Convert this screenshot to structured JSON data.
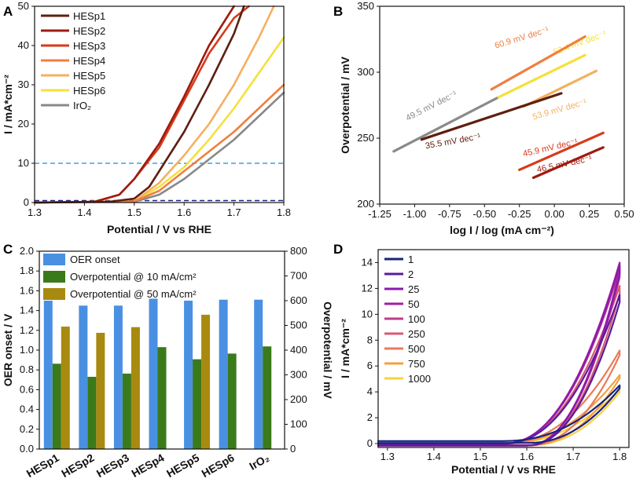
{
  "chart_data": [
    {
      "panel": "A",
      "type": "line",
      "xlabel": "Potential / V vs RHE",
      "ylabel": "I / mA*cm⁻²",
      "xlim": [
        1.3,
        1.8
      ],
      "ylim": [
        0,
        50
      ],
      "xticks": [
        "1.3",
        "1.4",
        "1.5",
        "1.6",
        "1.7",
        "1.8"
      ],
      "yticks": [
        "0",
        "10",
        "20",
        "30",
        "40",
        "50"
      ],
      "hlines": [
        {
          "y": 10,
          "color": "#3aa0e0"
        },
        {
          "y": 0.5,
          "color": "#1a237e"
        }
      ],
      "series": [
        {
          "name": "HESp1",
          "color": "#5e1f10",
          "x": [
            1.3,
            1.45,
            1.5,
            1.53,
            1.55,
            1.6,
            1.65,
            1.7,
            1.72
          ],
          "y": [
            0,
            0.2,
            1,
            4,
            8,
            18,
            30,
            43,
            50
          ]
        },
        {
          "name": "HESp2",
          "color": "#9e1b10",
          "x": [
            1.3,
            1.42,
            1.47,
            1.5,
            1.55,
            1.6,
            1.65,
            1.7
          ],
          "y": [
            0,
            0.2,
            2,
            6,
            15,
            27,
            40,
            50
          ]
        },
        {
          "name": "HESp3",
          "color": "#d83a1a",
          "x": [
            1.3,
            1.42,
            1.47,
            1.5,
            1.55,
            1.6,
            1.65,
            1.7,
            1.73
          ],
          "y": [
            0,
            0.2,
            2,
            6,
            14,
            26,
            38,
            47,
            50
          ]
        },
        {
          "name": "HESp4",
          "color": "#f07f3f",
          "x": [
            1.3,
            1.5,
            1.55,
            1.6,
            1.65,
            1.7,
            1.75,
            1.8
          ],
          "y": [
            0,
            0.3,
            3,
            8,
            13,
            18,
            24,
            30
          ]
        },
        {
          "name": "HESp5",
          "color": "#f4b060",
          "x": [
            1.3,
            1.5,
            1.55,
            1.6,
            1.65,
            1.7,
            1.75,
            1.78
          ],
          "y": [
            0,
            0.3,
            5,
            12,
            20,
            30,
            42,
            50
          ]
        },
        {
          "name": "HESp6",
          "color": "#f5e03c",
          "x": [
            1.3,
            1.5,
            1.55,
            1.6,
            1.65,
            1.7,
            1.75,
            1.8
          ],
          "y": [
            0,
            0.3,
            4,
            9,
            16,
            24,
            33,
            42
          ]
        },
        {
          "name": "IrO₂",
          "color": "#888888",
          "x": [
            1.3,
            1.5,
            1.55,
            1.6,
            1.65,
            1.7,
            1.75,
            1.8
          ],
          "y": [
            0,
            0.2,
            2,
            6,
            11,
            16,
            22,
            28
          ]
        }
      ]
    },
    {
      "panel": "B",
      "type": "line",
      "xlabel": "log I / log (mA cm⁻²)",
      "ylabel": "Overpotential / mV",
      "xlim": [
        -1.25,
        0.5
      ],
      "ylim": [
        200,
        350
      ],
      "xticks": [
        "-1.25",
        "-1.00",
        "-0.75",
        "-0.50",
        "-0.25",
        "0.00",
        "0.25",
        "0.50"
      ],
      "yticks": [
        "200",
        "250",
        "300",
        "350"
      ],
      "series": [
        {
          "name": "IrO₂",
          "color": "#8a8a8a",
          "x": [
            -1.15,
            -0.4
          ],
          "y": [
            240,
            281
          ],
          "label": "49.5 mV dec⁻¹"
        },
        {
          "name": "HESp6",
          "color": "#f5e03c",
          "x": [
            -0.4,
            0.22
          ],
          "y": [
            281,
            313
          ],
          "label": "52.4 mV dec⁻¹"
        },
        {
          "name": "HESp4",
          "color": "#f07f3f",
          "x": [
            -0.45,
            0.22
          ],
          "y": [
            287,
            327
          ],
          "label": "60.9 mV dec⁻¹"
        },
        {
          "name": "HESp5",
          "color": "#f4b060",
          "x": [
            -0.22,
            0.3
          ],
          "y": [
            274,
            301
          ],
          "label": "53.9 mV dec⁻¹"
        },
        {
          "name": "HESp1",
          "color": "#5e1f10",
          "x": [
            -0.95,
            0.05
          ],
          "y": [
            249,
            284
          ],
          "label": "35.5 mV dec⁻¹"
        },
        {
          "name": "HESp3",
          "color": "#d83a1a",
          "x": [
            -0.25,
            0.35
          ],
          "y": [
            226,
            254
          ],
          "label": "45.9 mV dec⁻¹"
        },
        {
          "name": "HESp2",
          "color": "#9e1b10",
          "x": [
            -0.15,
            0.35
          ],
          "y": [
            220,
            243
          ],
          "label": "46.5 mV dec⁻¹"
        }
      ]
    },
    {
      "panel": "C",
      "type": "bar",
      "ylabel": "OER onset / V",
      "y2label": "Overpotential / mV",
      "ylim": [
        0,
        2.0
      ],
      "y2lim": [
        0,
        800
      ],
      "yticks": [
        "0.0",
        "0.2",
        "0.4",
        "0.6",
        "0.8",
        "1.0",
        "1.2",
        "1.4",
        "1.6",
        "1.8",
        "2.0"
      ],
      "y2ticks": [
        "0",
        "100",
        "200",
        "300",
        "400",
        "500",
        "600",
        "700",
        "800"
      ],
      "categories": [
        "HESp1",
        "HESp2",
        "HESp3",
        "HESp4",
        "HESp5",
        "HESp6",
        "IrO₂"
      ],
      "series": [
        {
          "name": "OER onset",
          "color": "#4a90e2",
          "axis": "left",
          "values": [
            1.5,
            1.45,
            1.45,
            1.52,
            1.5,
            1.51,
            1.51
          ]
        },
        {
          "name": "Overpotential @ 10 mA/cm²",
          "color": "#3a7a1a",
          "axis": "right",
          "values": [
            345,
            292,
            305,
            412,
            363,
            386,
            415
          ]
        },
        {
          "name": "Overpotential @ 50 mA/cm²",
          "color": "#a88a10",
          "axis": "right",
          "values": [
            495,
            470,
            493,
            null,
            543,
            null,
            null
          ]
        }
      ]
    },
    {
      "panel": "D",
      "type": "line",
      "xlabel": "Potential / V vs RHE",
      "ylabel": "I / mA*cm⁻²",
      "xlim": [
        1.28,
        1.82
      ],
      "ylim": [
        -0.3,
        15
      ],
      "xticks": [
        "1.3",
        "1.4",
        "1.5",
        "1.6",
        "1.7",
        "1.8"
      ],
      "yticks": [
        "0",
        "2",
        "4",
        "6",
        "8",
        "10",
        "12",
        "14"
      ],
      "series": [
        {
          "name": "1",
          "color": "#1a237e",
          "peak": 4.5
        },
        {
          "name": "2",
          "color": "#5a1aa0",
          "peak": 11.5
        },
        {
          "name": "25",
          "color": "#8a1ab0",
          "peak": 13.8
        },
        {
          "name": "50",
          "color": "#a020a0",
          "peak": 14.0
        },
        {
          "name": "100",
          "color": "#c03a8a",
          "peak": 13.5
        },
        {
          "name": "250",
          "color": "#d85a70",
          "peak": 12.2
        },
        {
          "name": "500",
          "color": "#ea7a55",
          "peak": 7.2
        },
        {
          "name": "750",
          "color": "#f4a040",
          "peak": 5.3
        },
        {
          "name": "1000",
          "color": "#f8d040",
          "peak": 4.2
        }
      ]
    }
  ]
}
